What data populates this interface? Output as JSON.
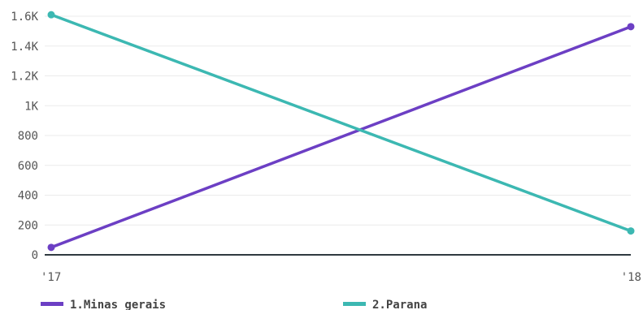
{
  "chart_data": {
    "type": "line",
    "title": "",
    "xlabel": "",
    "ylabel": "",
    "x": [
      "'17",
      "'18"
    ],
    "ylim": [
      0,
      1600
    ],
    "y_ticks": [
      0,
      200,
      400,
      600,
      800,
      1000,
      1200,
      1400,
      1600
    ],
    "y_tick_labels": [
      "0",
      "200",
      "400",
      "600",
      "800",
      "1K",
      "1.2K",
      "1.4K",
      "1.6K"
    ],
    "grid": true,
    "legend_position": "bottom",
    "series": [
      {
        "name": "1.Minas gerais",
        "color": "#6c3fc4",
        "values": [
          50,
          1530
        ]
      },
      {
        "name": "2.Parana",
        "color": "#3cb8b2",
        "values": [
          1610,
          160
        ]
      }
    ]
  }
}
